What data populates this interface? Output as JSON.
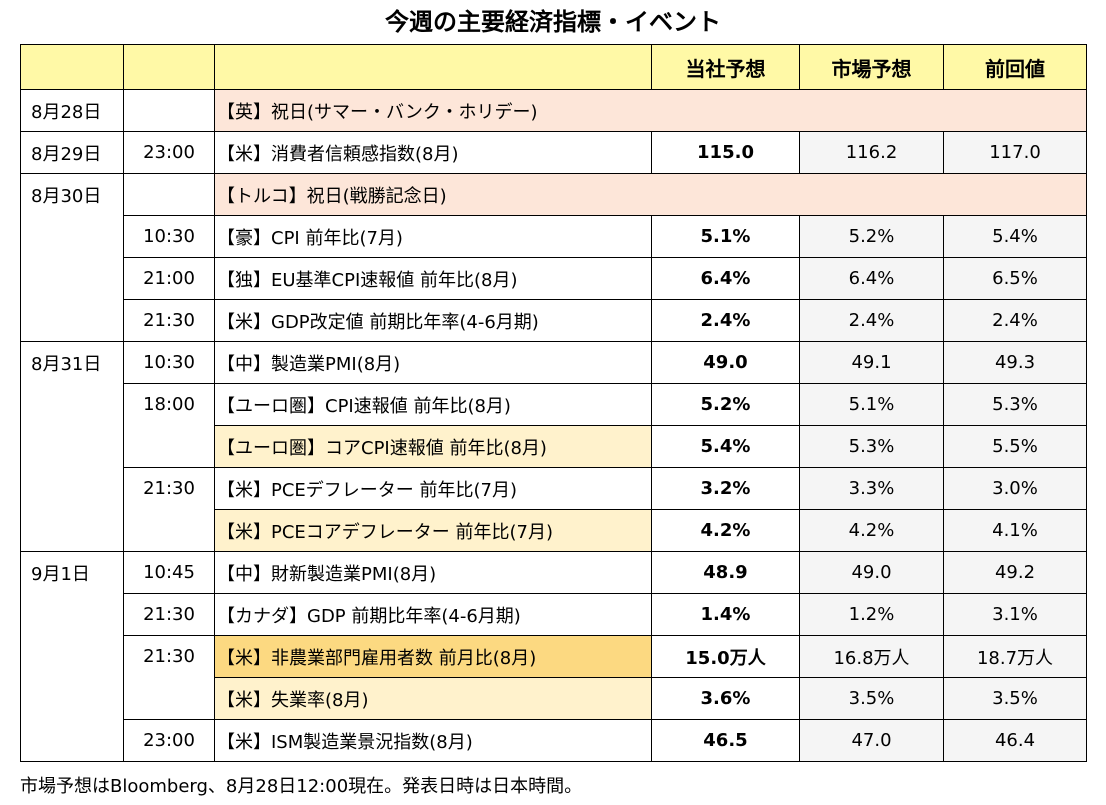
{
  "title": "今週の主要経済指標・イベント",
  "headers": {
    "own": "当社予想",
    "market": "市場予想",
    "prev": "前回値"
  },
  "dates": {
    "d1": "8月28日",
    "d2": "8月29日",
    "d3": "8月30日",
    "d4": "8月31日",
    "d5": "9月1日"
  },
  "rows": [
    {
      "time": "",
      "event": "【英】祝日(サマー・バンク・ホリデー)",
      "own": "",
      "market": "",
      "prev": ""
    },
    {
      "time": "23:00",
      "event": "【米】消費者信頼感指数(8月)",
      "own": "115.0",
      "market": "116.2",
      "prev": "117.0"
    },
    {
      "time": "",
      "event": "【トルコ】祝日(戦勝記念日)",
      "own": "",
      "market": "",
      "prev": ""
    },
    {
      "time": "10:30",
      "event": "【豪】CPI 前年比(7月)",
      "own": "5.1%",
      "market": "5.2%",
      "prev": "5.4%"
    },
    {
      "time": "21:00",
      "event": "【独】EU基準CPI速報値 前年比(8月)",
      "own": "6.4%",
      "market": "6.4%",
      "prev": "6.5%"
    },
    {
      "time": "21:30",
      "event": "【米】GDP改定値 前期比年率(4-6月期)",
      "own": "2.4%",
      "market": "2.4%",
      "prev": "2.4%"
    },
    {
      "time": "10:30",
      "event": "【中】製造業PMI(8月)",
      "own": "49.0",
      "market": "49.1",
      "prev": "49.3"
    },
    {
      "time": "18:00",
      "event": "【ユーロ圏】CPI速報値 前年比(8月)",
      "own": "5.2%",
      "market": "5.1%",
      "prev": "5.3%"
    },
    {
      "time": "",
      "event": "【ユーロ圏】コアCPI速報値 前年比(8月)",
      "own": "5.4%",
      "market": "5.3%",
      "prev": "5.5%"
    },
    {
      "time": "21:30",
      "event": "【米】PCEデフレーター 前年比(7月)",
      "own": "3.2%",
      "market": "3.3%",
      "prev": "3.0%"
    },
    {
      "time": "",
      "event": "【米】PCEコアデフレーター 前年比(7月)",
      "own": "4.2%",
      "market": "4.2%",
      "prev": "4.1%"
    },
    {
      "time": "10:45",
      "event": "【中】財新製造業PMI(8月)",
      "own": "48.9",
      "market": "49.0",
      "prev": "49.2"
    },
    {
      "time": "21:30",
      "event": "【カナダ】GDP 前期比年率(4-6月期)",
      "own": "1.4%",
      "market": "1.2%",
      "prev": "3.1%"
    },
    {
      "time": "21:30",
      "event": "【米】非農業部門雇用者数 前月比(8月)",
      "own": "15.0万人",
      "market": "16.8万人",
      "prev": "18.7万人"
    },
    {
      "time": "",
      "event": "【米】失業率(8月)",
      "own": "3.6%",
      "market": "3.5%",
      "prev": "3.5%"
    },
    {
      "time": "23:00",
      "event": "【米】ISM製造業景況指数(8月)",
      "own": "46.5",
      "market": "47.0",
      "prev": "46.4"
    }
  ],
  "footnote": "市場予想はBloomberg、8月28日12:00現在。発表日時は日本時間。",
  "colors": {
    "header_bg": "#fff9a6",
    "holiday_bg": "#fde6d9",
    "highlight_light": "#fff2cc",
    "highlight_strong": "#fcd981",
    "value_bg": "#f5f5f5"
  }
}
